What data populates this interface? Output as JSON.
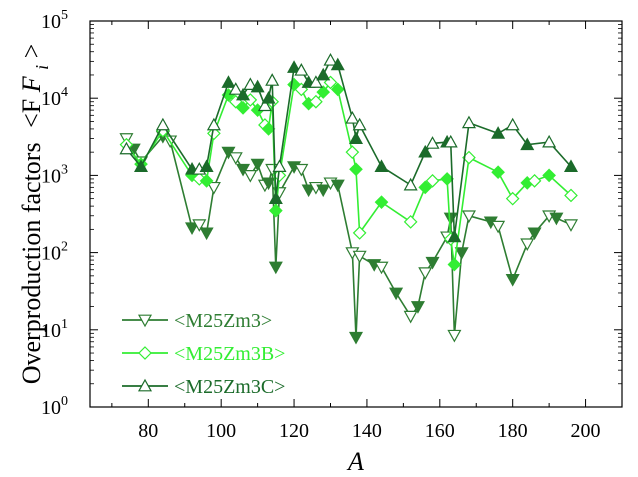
{
  "chart_data": {
    "type": "line",
    "xlabel": "A",
    "ylabel": "Overproduction factors",
    "ylabel_math": "<F",
    "ylabel_sub": "i",
    "ylabel_close": " >",
    "xlim": [
      64,
      210
    ],
    "ylim_log10": [
      0,
      5
    ],
    "y_scale": "log",
    "x_ticks": [
      80,
      100,
      120,
      140,
      160,
      180,
      200
    ],
    "y_tick_labels": [
      {
        "base": "10",
        "exp": "0"
      },
      {
        "base": "10",
        "exp": "1"
      },
      {
        "base": "10",
        "exp": "2"
      },
      {
        "base": "10",
        "exp": "3"
      },
      {
        "base": "10",
        "exp": "4"
      },
      {
        "base": "10",
        "exp": "5"
      }
    ],
    "legend_position": "bottom-left",
    "series": [
      {
        "name": "<M25Zm3>",
        "color": "#2e7d32",
        "marker": "triangle-down",
        "x": [
          74,
          76,
          78,
          84,
          86,
          92,
          94,
          96,
          98,
          102,
          104,
          106,
          108,
          110,
          112,
          113,
          114,
          115,
          116,
          120,
          122,
          124,
          126,
          128,
          130,
          132,
          136,
          137,
          138,
          142,
          144,
          148,
          152,
          154,
          156,
          158,
          162,
          163,
          164,
          166,
          168,
          174,
          176,
          180,
          184,
          186,
          190,
          192,
          196
        ],
        "y": [
          3000.0,
          2200.0,
          1500.0,
          3200.0,
          2800.0,
          210.0,
          230.0,
          180.0,
          700.0,
          2000.0,
          1700.0,
          1200.0,
          1000.0,
          1400.0,
          750.0,
          800.0,
          1200.0,
          65.0,
          600.0,
          1300.0,
          1200.0,
          650.0,
          700.0,
          650.0,
          800.0,
          750.0,
          100.0,
          8.0,
          90.0,
          70.0,
          65.0,
          30.0,
          15.0,
          20.0,
          55.0,
          75.0,
          160.0,
          280.0,
          8.5,
          100.0,
          300.0,
          250.0,
          220.0,
          45.0,
          130.0,
          180.0,
          300.0,
          280.0,
          230.0
        ]
      },
      {
        "name": "<M25Zm3B>",
        "color": "#33ee33",
        "marker": "diamond",
        "x": [
          74,
          78,
          84,
          92,
          94,
          96,
          98,
          102,
          104,
          106,
          108,
          110,
          112,
          113,
          114,
          115,
          116,
          120,
          122,
          124,
          126,
          128,
          130,
          132,
          136,
          137,
          138,
          144,
          152,
          156,
          158,
          162,
          163,
          164,
          168,
          176,
          180,
          184,
          186,
          190,
          196
        ],
        "y": [
          2500.0,
          1400.0,
          3800.0,
          1000.0,
          900.0,
          850.0,
          3500.0,
          11000.0,
          9000.0,
          7500.0,
          9500.0,
          7000.0,
          4500.0,
          4000.0,
          9000.0,
          350.0,
          1000.0,
          15000.0,
          13000.0,
          8500.0,
          9000.0,
          12000.0,
          16000.0,
          13000.0,
          2000.0,
          1200.0,
          180.0,
          450.0,
          250.0,
          700.0,
          850.0,
          900.0,
          150.0,
          70.0,
          1700.0,
          1100.0,
          500.0,
          800.0,
          850.0,
          1000.0,
          550.0
        ]
      },
      {
        "name": "<M25Zm3C>",
        "color": "#1b6b2a",
        "marker": "triangle-up",
        "x": [
          74,
          78,
          84,
          92,
          94,
          96,
          98,
          102,
          104,
          106,
          108,
          110,
          112,
          113,
          114,
          115,
          116,
          120,
          122,
          124,
          126,
          128,
          130,
          132,
          136,
          137,
          138,
          144,
          152,
          156,
          158,
          162,
          163,
          164,
          168,
          176,
          180,
          184,
          190,
          196
        ],
        "y": [
          2200.0,
          1300.0,
          4500.0,
          1200.0,
          1200.0,
          1300.0,
          4500.0,
          16000.0,
          13000.0,
          11000.0,
          15000.0,
          14000.0,
          8000.0,
          10000.0,
          17000.0,
          500.0,
          1300.0,
          25000.0,
          23000.0,
          16000.0,
          16000.0,
          20000.0,
          31000.0,
          27000.0,
          5500.0,
          3000.0,
          4500.0,
          1300.0,
          750.0,
          2000.0,
          2600.0,
          2700.0,
          2700.0,
          160.0,
          4800.0,
          3500.0,
          4500.0,
          2500.0,
          2700.0,
          1300.0
        ]
      }
    ]
  }
}
